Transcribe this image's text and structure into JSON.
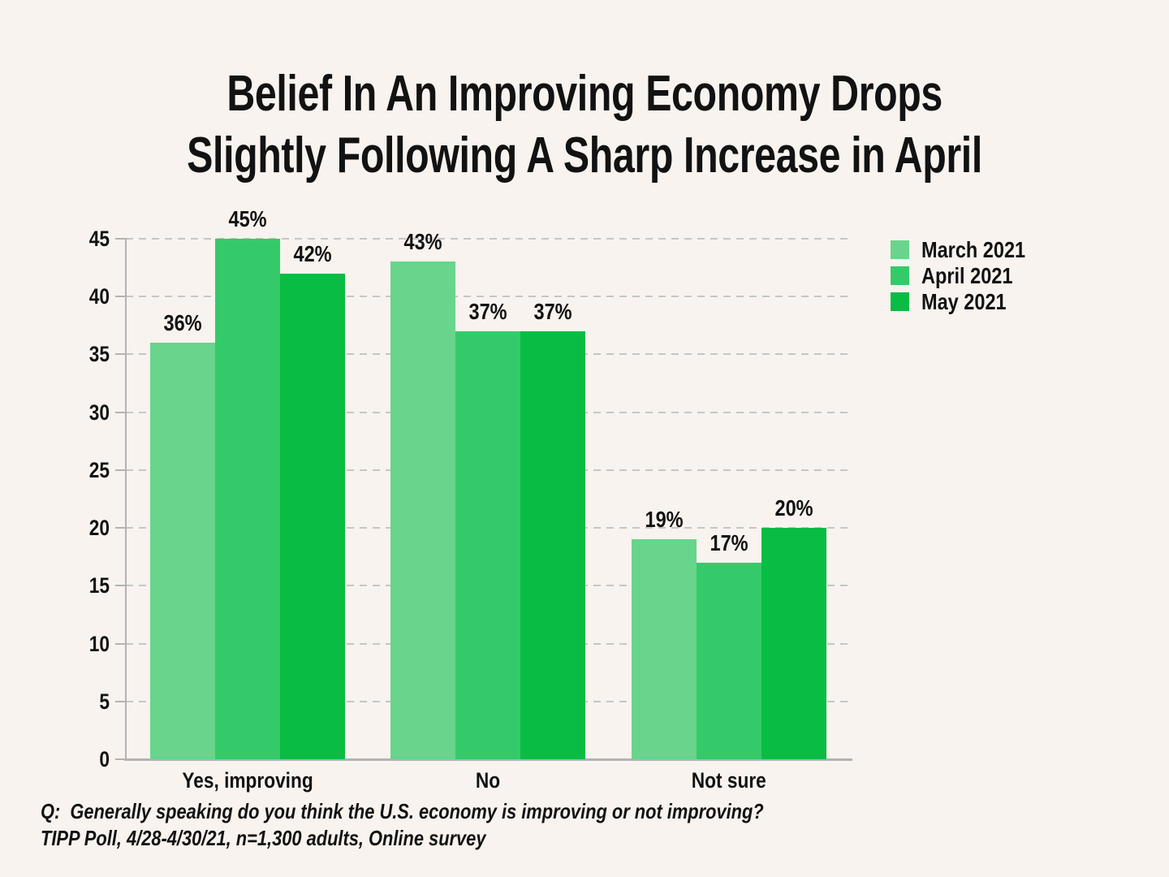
{
  "header": {
    "title_line1": "Belief In An Improving Economy Drops",
    "title_line2": "Slightly Following A Sharp Increase in April"
  },
  "chart_data": {
    "type": "bar",
    "title": "Belief In An Improving Economy Drops Slightly Following A Sharp Increase in April",
    "categories": [
      "Yes, improving",
      "No",
      "Not sure"
    ],
    "series": [
      {
        "name": "March 2021",
        "color": "#68D48C",
        "values": [
          36,
          43,
          19
        ]
      },
      {
        "name": "April 2021",
        "color": "#35CA69",
        "values": [
          45,
          37,
          17
        ]
      },
      {
        "name": "May 2021",
        "color": "#09BC43",
        "values": [
          42,
          37,
          20
        ]
      }
    ],
    "ylim": [
      0,
      45
    ],
    "yticks": [
      0,
      5,
      10,
      15,
      20,
      25,
      30,
      35,
      40,
      45
    ],
    "value_suffix": "%",
    "grid": "horizontal-dashed",
    "legend_position": "top-right",
    "xlabel": "",
    "ylabel": ""
  },
  "footer": {
    "question": "Q:  Generally speaking do you think the U.S. economy is improving or not improving?",
    "source": "TIPP Poll, 4/28-4/30/21, n=1,300 adults, Online survey"
  },
  "colors": {
    "background": "#F8F3EE",
    "text": "#121212",
    "gridline": "#C6C6C6",
    "axis": "#B2B2B6"
  }
}
